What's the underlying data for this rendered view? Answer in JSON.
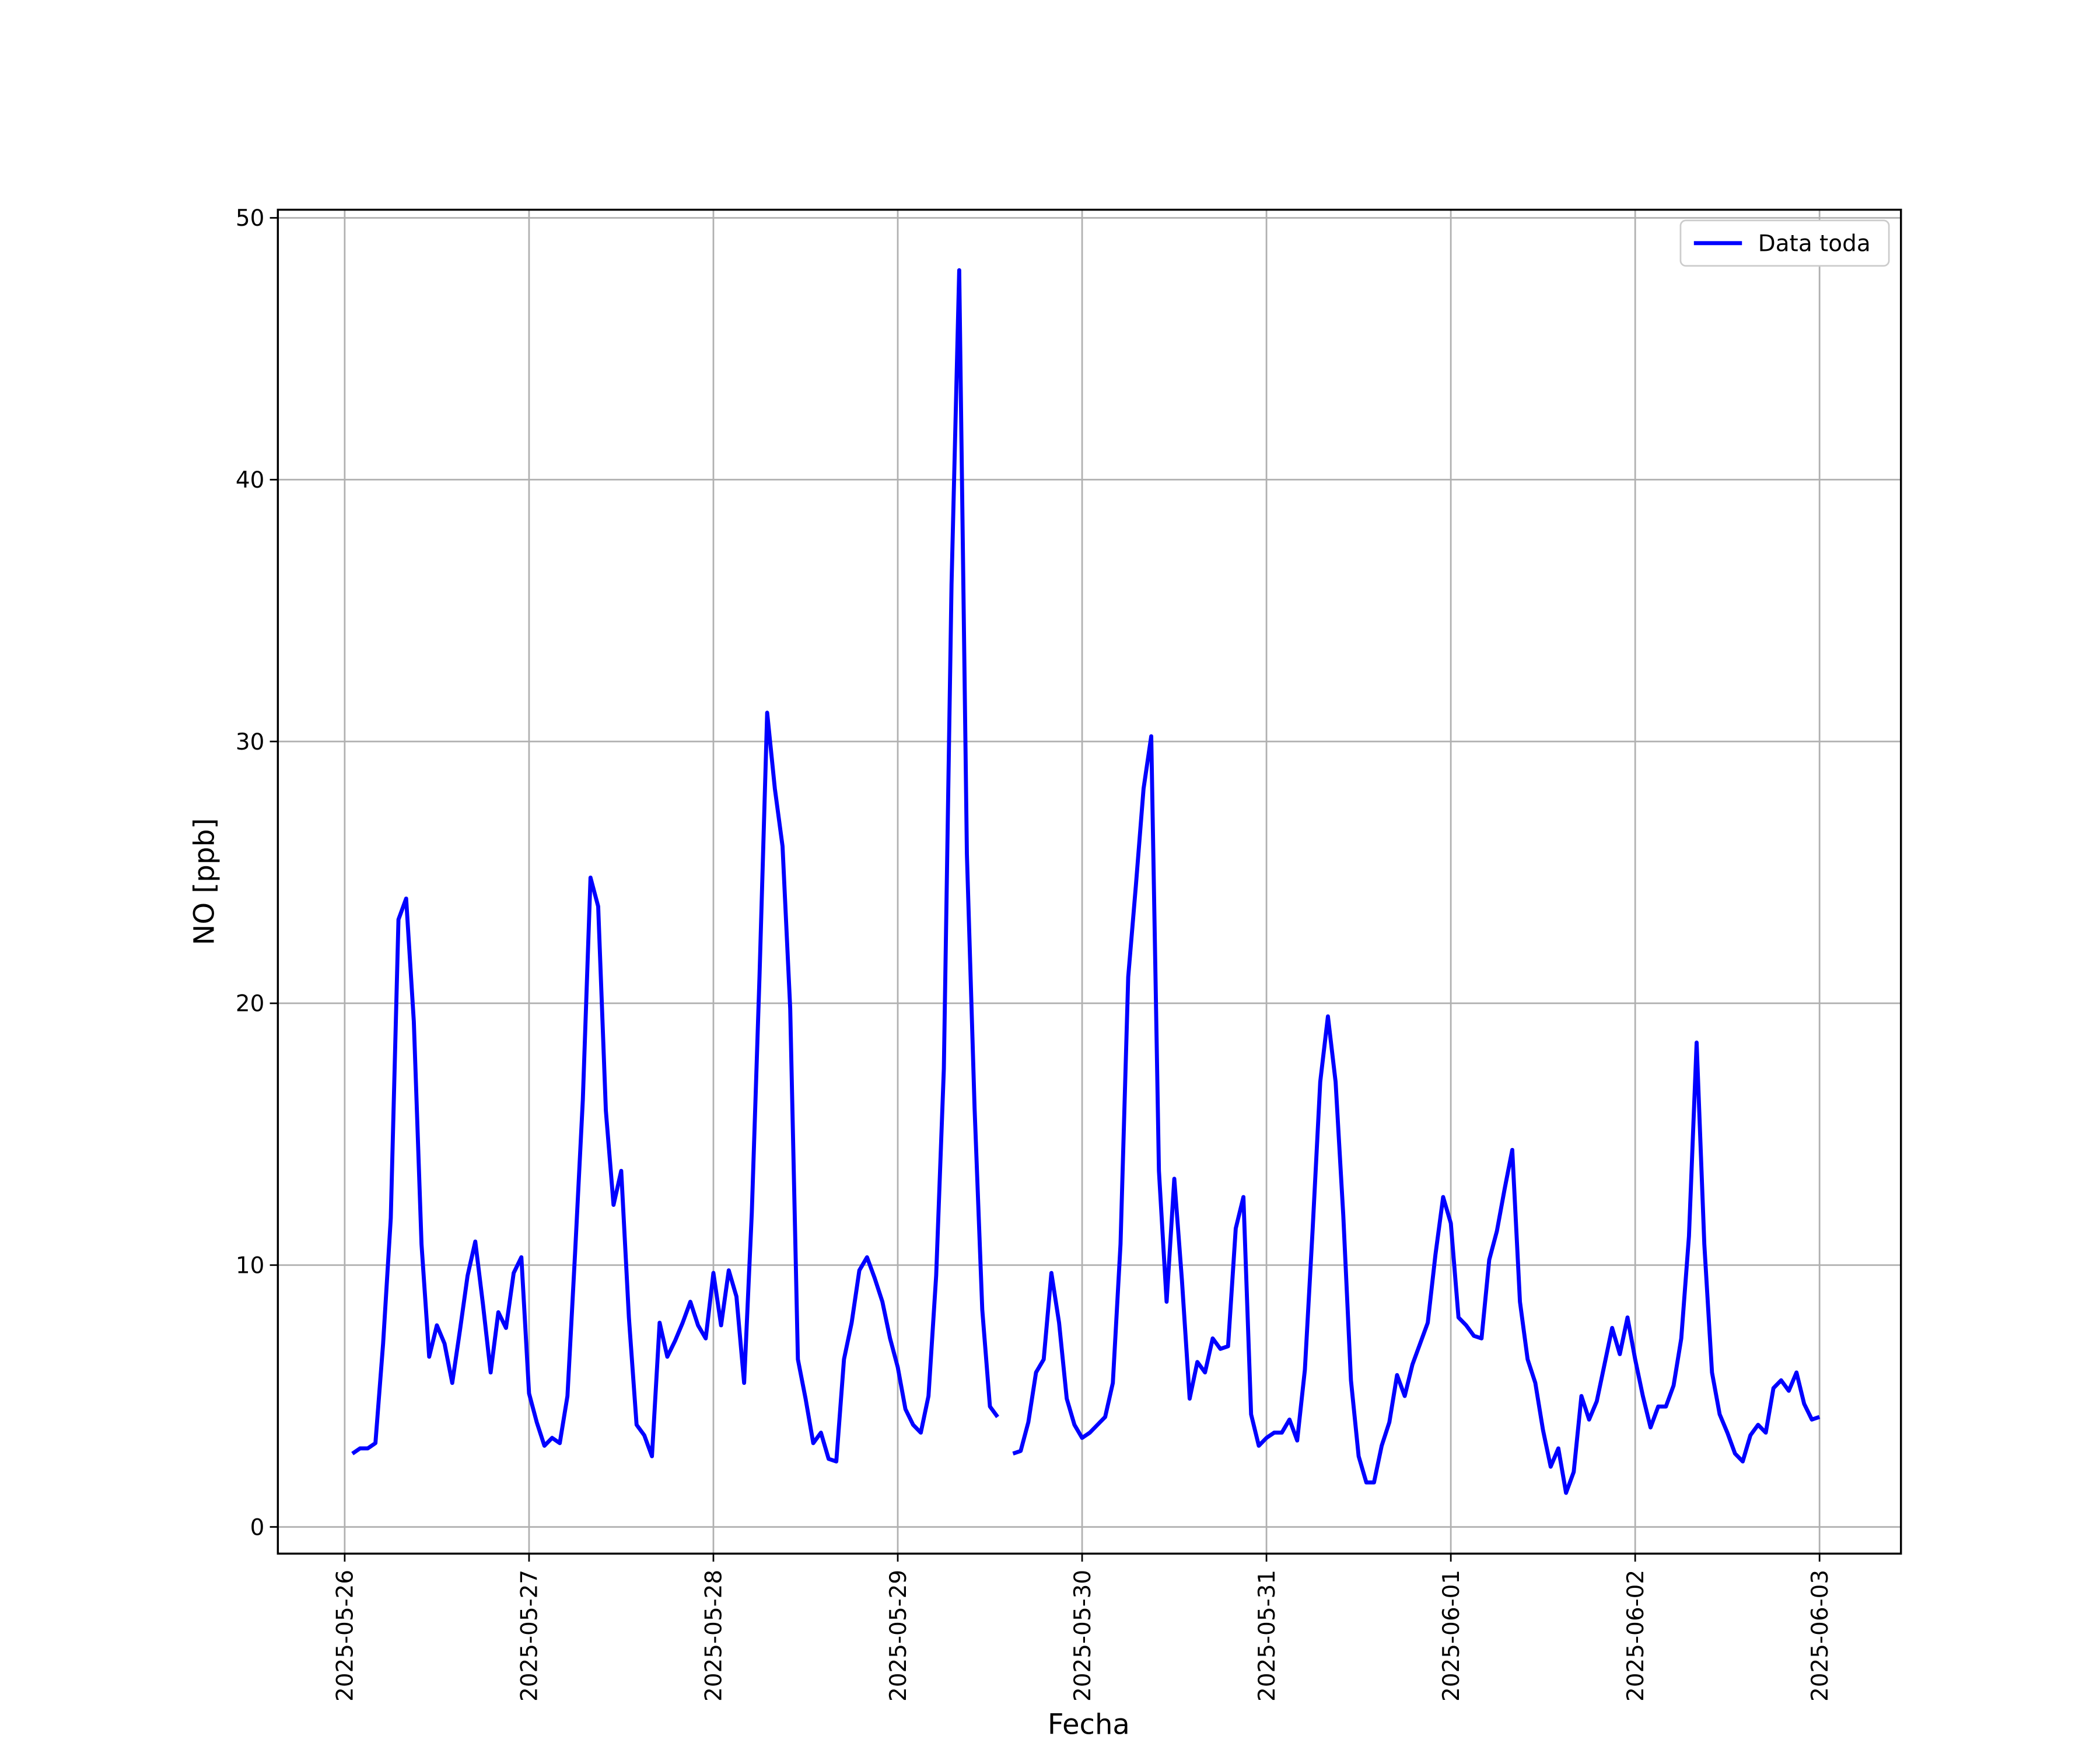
{
  "chart_data": {
    "type": "line",
    "xlabel": "Fecha",
    "ylabel": "NO [ppb]",
    "x": [
      "2025-05-26T01:00",
      "2025-05-26T02:00",
      "2025-05-26T03:00",
      "2025-05-26T04:00",
      "2025-05-26T05:00",
      "2025-05-26T06:00",
      "2025-05-26T07:00",
      "2025-05-26T08:00",
      "2025-05-26T09:00",
      "2025-05-26T10:00",
      "2025-05-26T11:00",
      "2025-05-26T12:00",
      "2025-05-26T13:00",
      "2025-05-26T14:00",
      "2025-05-26T15:00",
      "2025-05-26T16:00",
      "2025-05-26T17:00",
      "2025-05-26T18:00",
      "2025-05-26T19:00",
      "2025-05-26T20:00",
      "2025-05-26T21:00",
      "2025-05-26T22:00",
      "2025-05-26T23:00",
      "2025-05-27T00:00",
      "2025-05-27T01:00",
      "2025-05-27T02:00",
      "2025-05-27T03:00",
      "2025-05-27T04:00",
      "2025-05-27T05:00",
      "2025-05-27T06:00",
      "2025-05-27T07:00",
      "2025-05-27T08:00",
      "2025-05-27T09:00",
      "2025-05-27T10:00",
      "2025-05-27T11:00",
      "2025-05-27T12:00",
      "2025-05-27T13:00",
      "2025-05-27T14:00",
      "2025-05-27T15:00",
      "2025-05-27T16:00",
      "2025-05-27T17:00",
      "2025-05-27T18:00",
      "2025-05-27T19:00",
      "2025-05-27T20:00",
      "2025-05-27T21:00",
      "2025-05-27T22:00",
      "2025-05-27T23:00",
      "2025-05-28T00:00",
      "2025-05-28T01:00",
      "2025-05-28T02:00",
      "2025-05-28T03:00",
      "2025-05-28T04:00",
      "2025-05-28T05:00",
      "2025-05-28T06:00",
      "2025-05-28T07:00",
      "2025-05-28T08:00",
      "2025-05-28T09:00",
      "2025-05-28T10:00",
      "2025-05-28T11:00",
      "2025-05-28T12:00",
      "2025-05-28T13:00",
      "2025-05-28T14:00",
      "2025-05-28T15:00",
      "2025-05-28T16:00",
      "2025-05-28T17:00",
      "2025-05-28T18:00",
      "2025-05-28T19:00",
      "2025-05-28T20:00",
      "2025-05-28T21:00",
      "2025-05-28T22:00",
      "2025-05-28T23:00",
      "2025-05-29T00:00",
      "2025-05-29T01:00",
      "2025-05-29T02:00",
      "2025-05-29T03:00",
      "2025-05-29T04:00",
      "2025-05-29T05:00",
      "2025-05-29T06:00",
      "2025-05-29T07:00",
      "2025-05-29T08:00",
      "2025-05-29T09:00",
      "2025-05-29T10:00",
      "2025-05-29T11:00",
      "2025-05-29T12:00",
      "2025-05-29T13:00",
      "2025-05-29T14:00",
      "2025-05-29T15:00",
      "2025-05-29T16:00",
      "2025-05-29T17:00",
      "2025-05-29T18:00",
      "2025-05-29T19:00",
      "2025-05-29T20:00",
      "2025-05-29T21:00",
      "2025-05-29T22:00",
      "2025-05-29T23:00",
      "2025-05-30T00:00",
      "2025-05-30T01:00",
      "2025-05-30T02:00",
      "2025-05-30T03:00",
      "2025-05-30T04:00",
      "2025-05-30T05:00",
      "2025-05-30T06:00",
      "2025-05-30T07:00",
      "2025-05-30T08:00",
      "2025-05-30T09:00",
      "2025-05-30T10:00",
      "2025-05-30T11:00",
      "2025-05-30T12:00",
      "2025-05-30T13:00",
      "2025-05-30T14:00",
      "2025-05-30T15:00",
      "2025-05-30T16:00",
      "2025-05-30T17:00",
      "2025-05-30T18:00",
      "2025-05-30T19:00",
      "2025-05-30T20:00",
      "2025-05-30T21:00",
      "2025-05-30T22:00",
      "2025-05-30T23:00",
      "2025-05-31T00:00",
      "2025-05-31T01:00",
      "2025-05-31T02:00",
      "2025-05-31T03:00",
      "2025-05-31T04:00",
      "2025-05-31T05:00",
      "2025-05-31T06:00",
      "2025-05-31T07:00",
      "2025-05-31T08:00",
      "2025-05-31T09:00",
      "2025-05-31T10:00",
      "2025-05-31T11:00",
      "2025-05-31T12:00",
      "2025-05-31T13:00",
      "2025-05-31T14:00",
      "2025-05-31T15:00",
      "2025-05-31T16:00",
      "2025-05-31T17:00",
      "2025-05-31T18:00",
      "2025-05-31T19:00",
      "2025-05-31T20:00",
      "2025-05-31T21:00",
      "2025-05-31T22:00",
      "2025-05-31T23:00",
      "2025-06-01T00:00",
      "2025-06-01T01:00",
      "2025-06-01T02:00",
      "2025-06-01T03:00",
      "2025-06-01T04:00",
      "2025-06-01T05:00",
      "2025-06-01T06:00",
      "2025-06-01T07:00",
      "2025-06-01T08:00",
      "2025-06-01T09:00",
      "2025-06-01T10:00",
      "2025-06-01T11:00",
      "2025-06-01T12:00",
      "2025-06-01T13:00",
      "2025-06-01T14:00",
      "2025-06-01T15:00",
      "2025-06-01T16:00",
      "2025-06-01T17:00",
      "2025-06-01T18:00",
      "2025-06-01T19:00",
      "2025-06-01T20:00",
      "2025-06-01T21:00",
      "2025-06-01T22:00",
      "2025-06-01T23:00",
      "2025-06-02T00:00",
      "2025-06-02T01:00",
      "2025-06-02T02:00",
      "2025-06-02T03:00",
      "2025-06-02T04:00",
      "2025-06-02T05:00",
      "2025-06-02T06:00",
      "2025-06-02T07:00",
      "2025-06-02T08:00",
      "2025-06-02T09:00",
      "2025-06-02T10:00",
      "2025-06-02T11:00",
      "2025-06-02T12:00",
      "2025-06-02T13:00",
      "2025-06-02T14:00",
      "2025-06-02T15:00",
      "2025-06-02T16:00",
      "2025-06-02T17:00",
      "2025-06-02T18:00",
      "2025-06-02T19:00",
      "2025-06-02T20:00",
      "2025-06-02T21:00",
      "2025-06-02T22:00",
      "2025-06-02T23:00",
      "2025-06-03T00:00"
    ],
    "series": [
      {
        "name": "Data toda",
        "color": "#0000ff",
        "values": [
          2.8,
          3.0,
          3.0,
          3.2,
          7.0,
          11.8,
          23.2,
          24.0,
          19.3,
          10.8,
          6.5,
          7.7,
          7.0,
          5.5,
          7.5,
          9.6,
          10.9,
          8.5,
          5.9,
          8.2,
          7.6,
          9.7,
          10.3,
          5.1,
          4.0,
          3.1,
          3.4,
          3.2,
          5.0,
          10.5,
          16.3,
          24.8,
          23.7,
          15.9,
          12.3,
          13.6,
          8.0,
          3.9,
          3.5,
          2.7,
          7.8,
          6.5,
          7.1,
          7.8,
          8.6,
          7.7,
          7.2,
          9.7,
          7.7,
          9.8,
          8.8,
          5.5,
          12.0,
          21.0,
          31.1,
          28.2,
          26.0,
          19.8,
          6.4,
          4.9,
          3.2,
          3.6,
          2.6,
          2.5,
          6.4,
          7.8,
          9.8,
          10.3,
          9.5,
          8.6,
          7.2,
          6.1,
          4.5,
          3.9,
          3.6,
          5.0,
          9.6,
          17.5,
          36.0,
          48.0,
          25.7,
          16.0,
          8.3,
          4.6,
          4.2,
          null,
          2.8,
          2.9,
          4.0,
          5.9,
          6.4,
          9.7,
          7.8,
          4.9,
          3.9,
          3.4,
          3.6,
          3.9,
          4.2,
          5.5,
          10.8,
          21.0,
          24.5,
          28.2,
          30.2,
          13.6,
          8.6,
          13.3,
          9.4,
          4.9,
          6.3,
          5.9,
          7.2,
          6.8,
          6.9,
          11.4,
          12.6,
          4.3,
          3.1,
          3.4,
          3.6,
          3.6,
          4.1,
          3.3,
          6.0,
          11.3,
          17.0,
          19.5,
          17.0,
          11.9,
          5.6,
          2.7,
          1.7,
          1.7,
          3.1,
          4.0,
          5.8,
          5.0,
          6.2,
          7.0,
          7.8,
          10.4,
          12.6,
          11.6,
          8.0,
          7.7,
          7.3,
          7.2,
          10.2,
          11.3,
          12.9,
          14.4,
          8.6,
          6.4,
          5.5,
          3.7,
          2.3,
          3.0,
          1.3,
          2.1,
          5.0,
          4.1,
          4.8,
          6.2,
          7.6,
          6.6,
          8.0,
          6.4,
          5.0,
          3.8,
          4.6,
          4.6,
          5.4,
          7.2,
          11.1,
          18.5,
          10.8,
          5.9,
          4.3,
          3.6,
          2.8,
          2.5,
          3.5,
          3.9,
          3.6,
          5.3,
          5.6,
          5.2,
          5.9,
          4.7,
          4.1,
          4.2
        ]
      }
    ],
    "xlim": [
      "2025-05-25T15:18",
      "2025-06-03T10:36"
    ],
    "xticks": [
      "2025-05-26",
      "2025-05-27",
      "2025-05-28",
      "2025-05-29",
      "2025-05-30",
      "2025-05-31",
      "2025-06-01",
      "2025-06-02",
      "2025-06-03"
    ],
    "ylim": [
      -1.02,
      50.31
    ],
    "yticks": [
      0,
      10,
      20,
      30,
      40,
      50
    ],
    "grid": true,
    "legend": "upper right"
  }
}
